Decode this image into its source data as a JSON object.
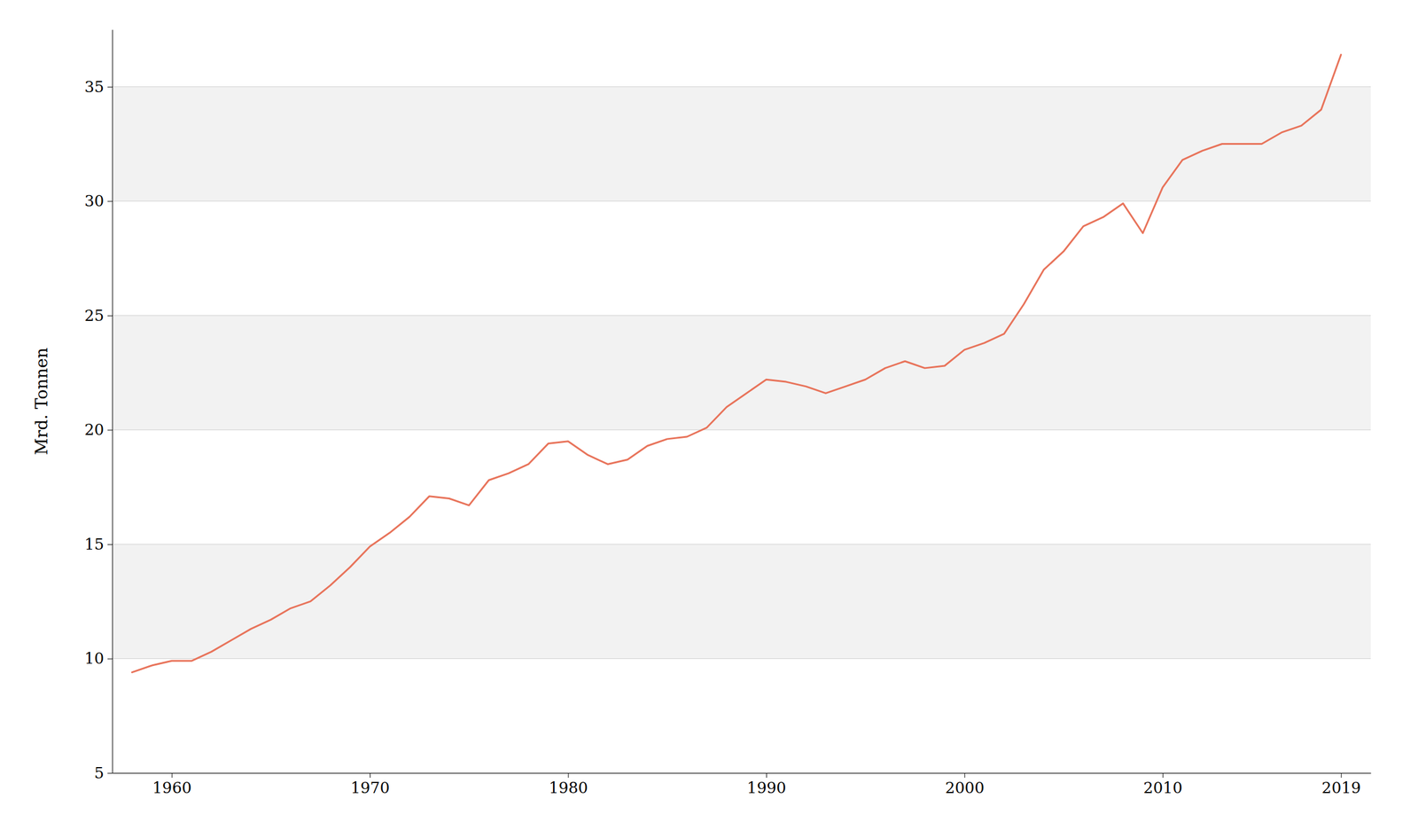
{
  "chart_data": {
    "type": "line",
    "y_label": "Mrd. Tonnen",
    "x": [
      1958,
      1959,
      1960,
      1961,
      1962,
      1963,
      1964,
      1965,
      1966,
      1967,
      1968,
      1969,
      1970,
      1971,
      1972,
      1973,
      1974,
      1975,
      1976,
      1977,
      1978,
      1979,
      1980,
      1981,
      1982,
      1983,
      1984,
      1985,
      1986,
      1987,
      1988,
      1989,
      1990,
      1991,
      1992,
      1993,
      1994,
      1995,
      1996,
      1997,
      1998,
      1999,
      2000,
      2001,
      2002,
      2003,
      2004,
      2005,
      2006,
      2007,
      2008,
      2009,
      2010,
      2011,
      2012,
      2013,
      2014,
      2015,
      2016,
      2017,
      2018,
      2019
    ],
    "values": [
      9.4,
      9.7,
      9.9,
      9.9,
      10.3,
      10.8,
      11.3,
      11.7,
      12.2,
      12.5,
      13.2,
      14.0,
      14.9,
      15.5,
      16.2,
      17.1,
      17.0,
      16.7,
      17.8,
      18.1,
      18.5,
      19.4,
      19.5,
      18.9,
      18.5,
      18.7,
      19.3,
      19.6,
      19.7,
      20.1,
      21.0,
      21.6,
      22.2,
      22.1,
      21.9,
      21.6,
      21.9,
      22.2,
      22.7,
      23.0,
      22.7,
      22.8,
      23.5,
      23.8,
      24.2,
      25.5,
      27.0,
      27.8,
      28.9,
      29.3,
      29.9,
      28.6,
      30.6,
      31.8,
      32.2,
      32.5,
      32.5,
      32.5,
      33.0,
      33.3,
      34.0,
      36.4
    ],
    "color": "#e8735a",
    "xlim": [
      1957,
      2020.5
    ],
    "ylim": [
      5,
      37.5
    ],
    "xticks": [
      1960,
      1970,
      1980,
      1990,
      2000,
      2010,
      2019
    ],
    "yticks": [
      5,
      10,
      15,
      20,
      25,
      30,
      35
    ],
    "grid": true
  }
}
